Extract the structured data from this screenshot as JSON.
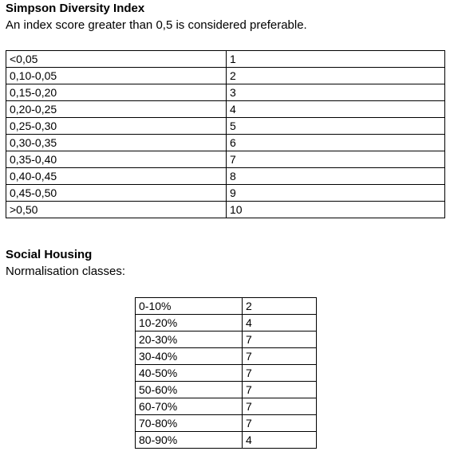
{
  "simpson": {
    "title": "Simpson Diversity Index",
    "note": "An index score greater than 0,5 is considered preferable.",
    "rows": [
      {
        "range": "<0,05",
        "score": "1"
      },
      {
        "range": "0,10-0,05",
        "score": "2"
      },
      {
        "range": "0,15-0,20",
        "score": "3"
      },
      {
        "range": "0,20-0,25",
        "score": "4"
      },
      {
        "range": "0,25-0,30",
        "score": "5"
      },
      {
        "range": "0,30-0,35",
        "score": "6"
      },
      {
        "range": "0,35-0,40",
        "score": "7"
      },
      {
        "range": "0,40-0,45",
        "score": "8"
      },
      {
        "range": "0,45-0,50",
        "score": "9"
      },
      {
        "range": ">0,50",
        "score": "10"
      }
    ]
  },
  "social": {
    "title": "Social Housing",
    "note": "Normalisation classes:",
    "rows": [
      {
        "range": "0-10%",
        "score": "2"
      },
      {
        "range": "10-20%",
        "score": "4"
      },
      {
        "range": "20-30%",
        "score": "7"
      },
      {
        "range": "30-40%",
        "score": "7"
      },
      {
        "range": "40-50%",
        "score": "7"
      },
      {
        "range": "50-60%",
        "score": "7"
      },
      {
        "range": "60-70%",
        "score": "7"
      },
      {
        "range": "70-80%",
        "score": "7"
      },
      {
        "range": "80-90%",
        "score": "4"
      }
    ]
  }
}
